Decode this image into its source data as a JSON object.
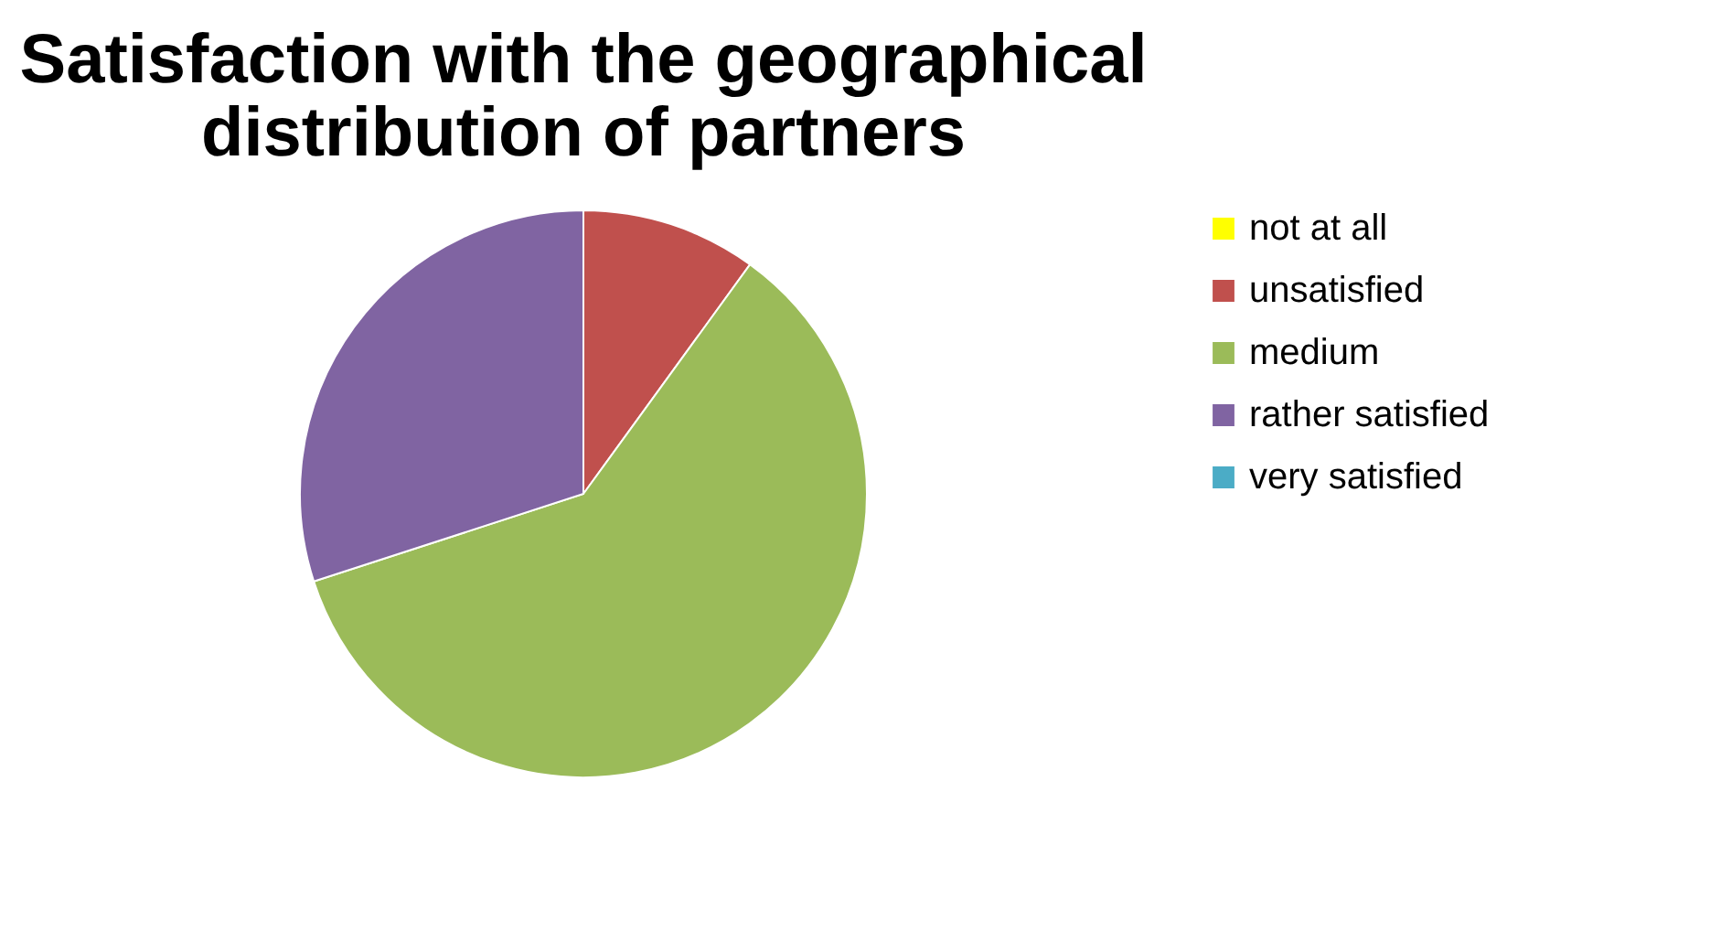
{
  "chart_data": {
    "type": "pie",
    "title": [
      "Satisfaction with the geographical",
      "distribution of partners"
    ],
    "categories": [
      "not at all",
      "unsatisfied",
      "medium",
      "rather satisfied",
      "very satisfied"
    ],
    "values": [
      0,
      10,
      60,
      30,
      0
    ],
    "colors": [
      "#ffff00",
      "#c0504d",
      "#9bbb59",
      "#8064a2",
      "#4bacc6"
    ],
    "legend": "right"
  }
}
